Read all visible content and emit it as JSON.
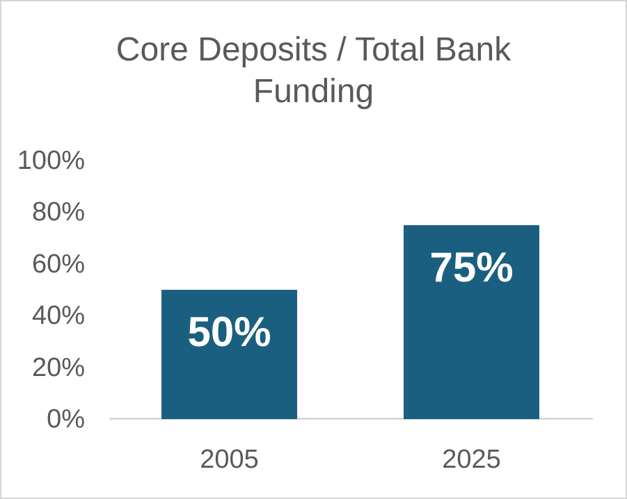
{
  "chart_data": {
    "type": "bar",
    "title": "Core Deposits / Total Bank Funding",
    "categories": [
      "2005",
      "2025"
    ],
    "values": [
      50,
      75
    ],
    "data_labels": [
      "50%",
      "75%"
    ],
    "y_ticks": [
      {
        "value": 0,
        "label": "0%"
      },
      {
        "value": 20,
        "label": "20%"
      },
      {
        "value": 40,
        "label": "40%"
      },
      {
        "value": 60,
        "label": "60%"
      },
      {
        "value": 80,
        "label": "80%"
      },
      {
        "value": 100,
        "label": "100%"
      }
    ],
    "ylim": [
      0,
      100
    ],
    "grid": false,
    "legend": false,
    "xlabel": "",
    "ylabel": "",
    "colors": {
      "bar": "#1B5F80",
      "title_text": "#595959",
      "axis_text": "#595959",
      "data_label_text": "#FFFFFF",
      "axis_line": "#D9D9D9",
      "background": "#FFFFFF",
      "border": "#D5D5D5"
    }
  }
}
